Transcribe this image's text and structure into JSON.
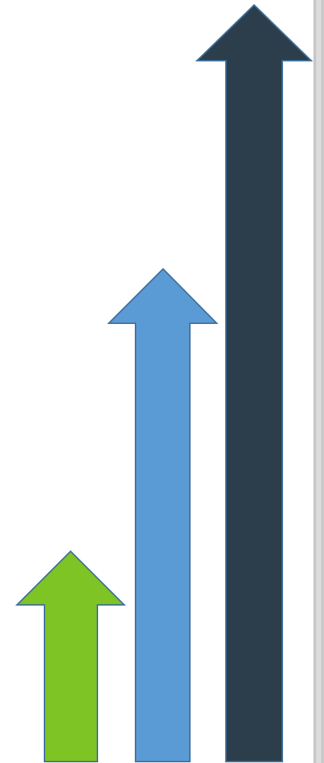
{
  "colors": {
    "background": "#ffffff",
    "outline": "#41719c",
    "edge_strip": "#c8c8c8",
    "edge_strip_light": "#dcdcdc"
  },
  "arrows": [
    {
      "name": "arrow-short-green",
      "color": "#7dc424",
      "level": 0.33
    },
    {
      "name": "arrow-medium-blue",
      "color": "#5b9bd5",
      "level": 0.65
    },
    {
      "name": "arrow-tall-navy",
      "color": "#2c3e4c",
      "level": 1.0
    }
  ]
}
